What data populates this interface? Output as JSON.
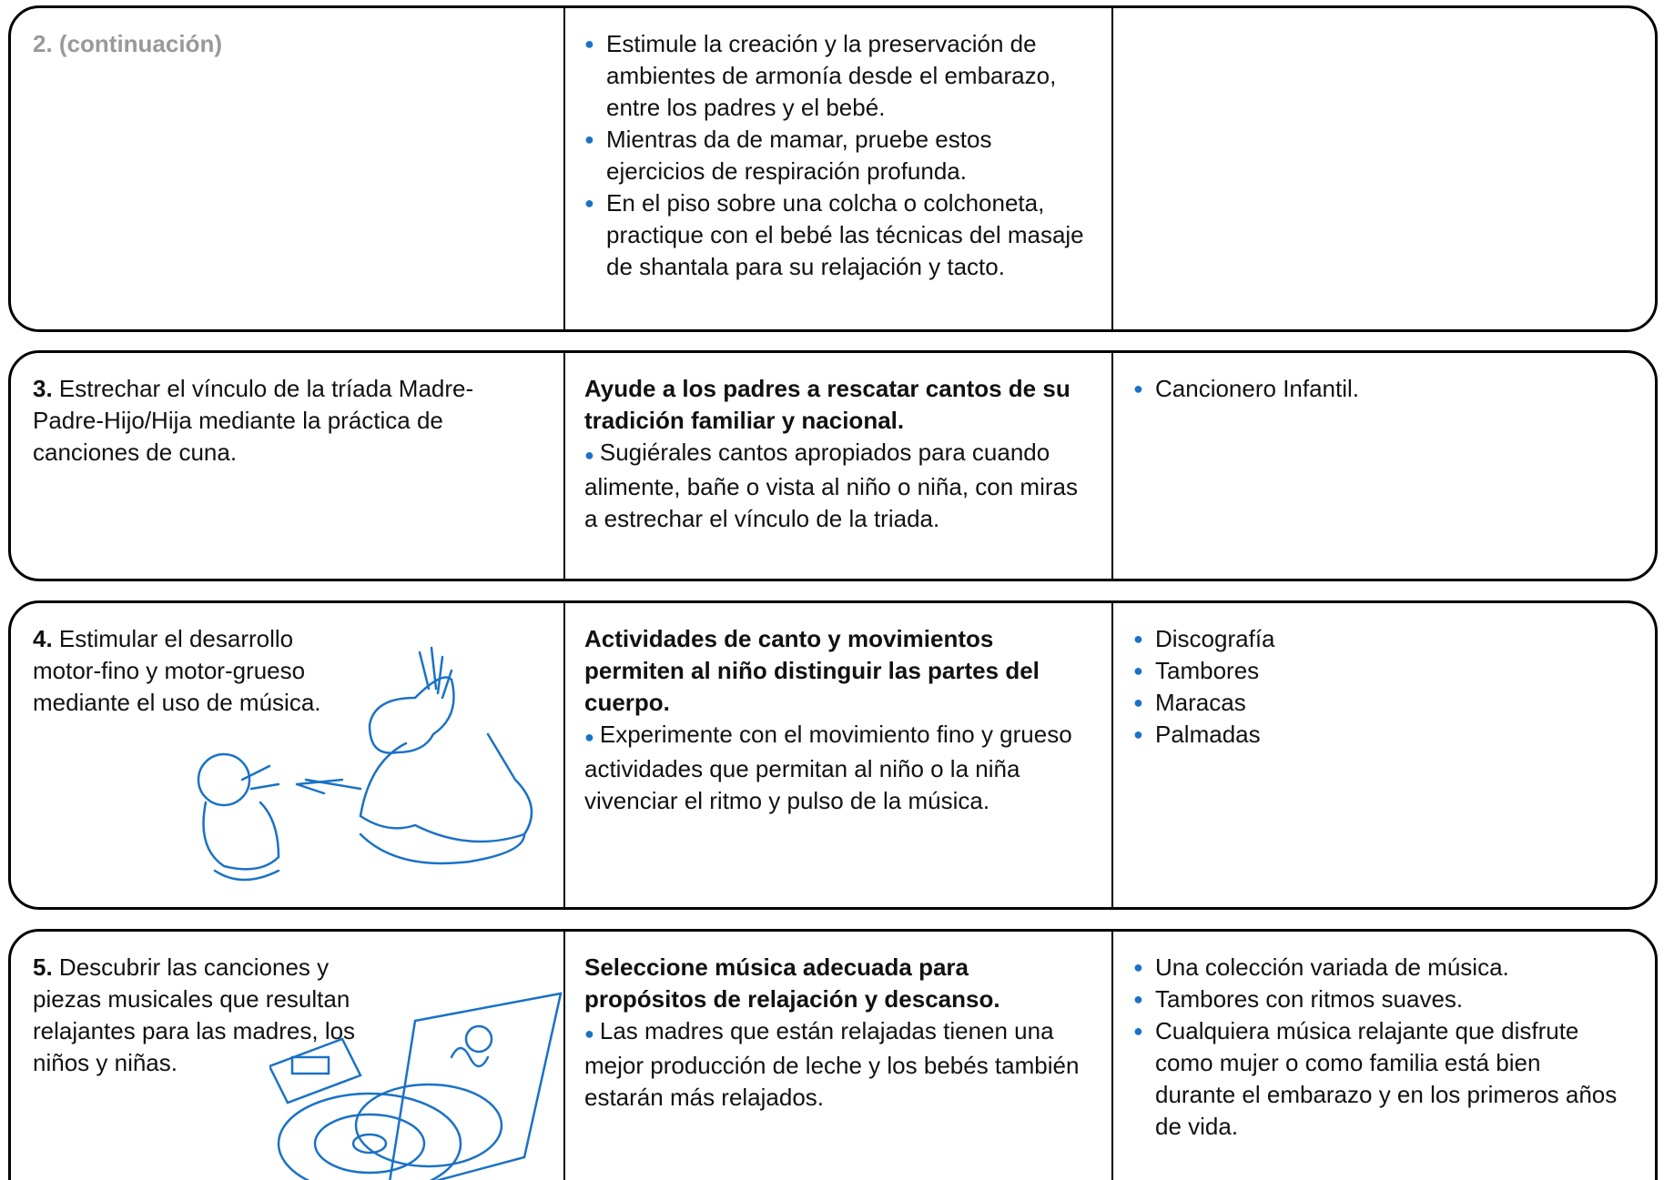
{
  "rows": [
    {
      "objective": {
        "label": "2. (continuación)"
      },
      "strategy": {
        "bullets": [
          "Estimule la creación y la preservación de ambientes de armonía desde el embarazo, entre los padres y el bebé.",
          "Mientras da de mamar, pruebe estos ejercicios de respiración profunda.",
          "En el piso sobre una colcha o colchoneta, practique con el bebé las técnicas del masaje de shantala para su relajación y tacto."
        ]
      },
      "resources": []
    },
    {
      "objective": {
        "number": "3.",
        "text": "Estrechar el vínculo de la tríada Madre-Padre-Hijo/Hija mediante la práctica de canciones de cuna."
      },
      "strategy": {
        "heading": "Ayude a los padres a rescatar cantos de su tradición familiar y nacional.",
        "paragraph": "Sugiérales cantos apropiados para cuando alimente, bañe o vista al niño o niña, con miras a estrechar el vínculo de la triada."
      },
      "resources": [
        "Cancionero Infantil."
      ]
    },
    {
      "objective": {
        "number": "4.",
        "text": "Estimular el desarrollo motor-fino y motor-grueso mediante el uso de música."
      },
      "strategy": {
        "heading": "Actividades de canto y movimientos permiten al niño distinguir las partes del cuerpo.",
        "paragraph": "Experimente con el movimiento fino y grueso actividades que permitan al niño o la niña vivenciar el ritmo y pulso de la música."
      },
      "resources": [
        "Discografía",
        "Tambores",
        "Maracas",
        "Palmadas"
      ]
    },
    {
      "objective": {
        "number": "5.",
        "text": "Descubrir las canciones y piezas musicales que resultan relajantes para las madres, los niños y niñas."
      },
      "strategy": {
        "heading": "Seleccione música adecuada para propósitos de relajación y descanso.",
        "paragraph": "Las madres que están relajadas tienen una mejor producción de leche y los bebés también estarán más relajados."
      },
      "resources": [
        "Una colección variada de música.",
        "Tambores con ritmos suaves.",
        "Cualquiera música relajante que disfrute como mujer o como familia está bien durante el embarazo y en los primeros años de vida."
      ]
    }
  ]
}
